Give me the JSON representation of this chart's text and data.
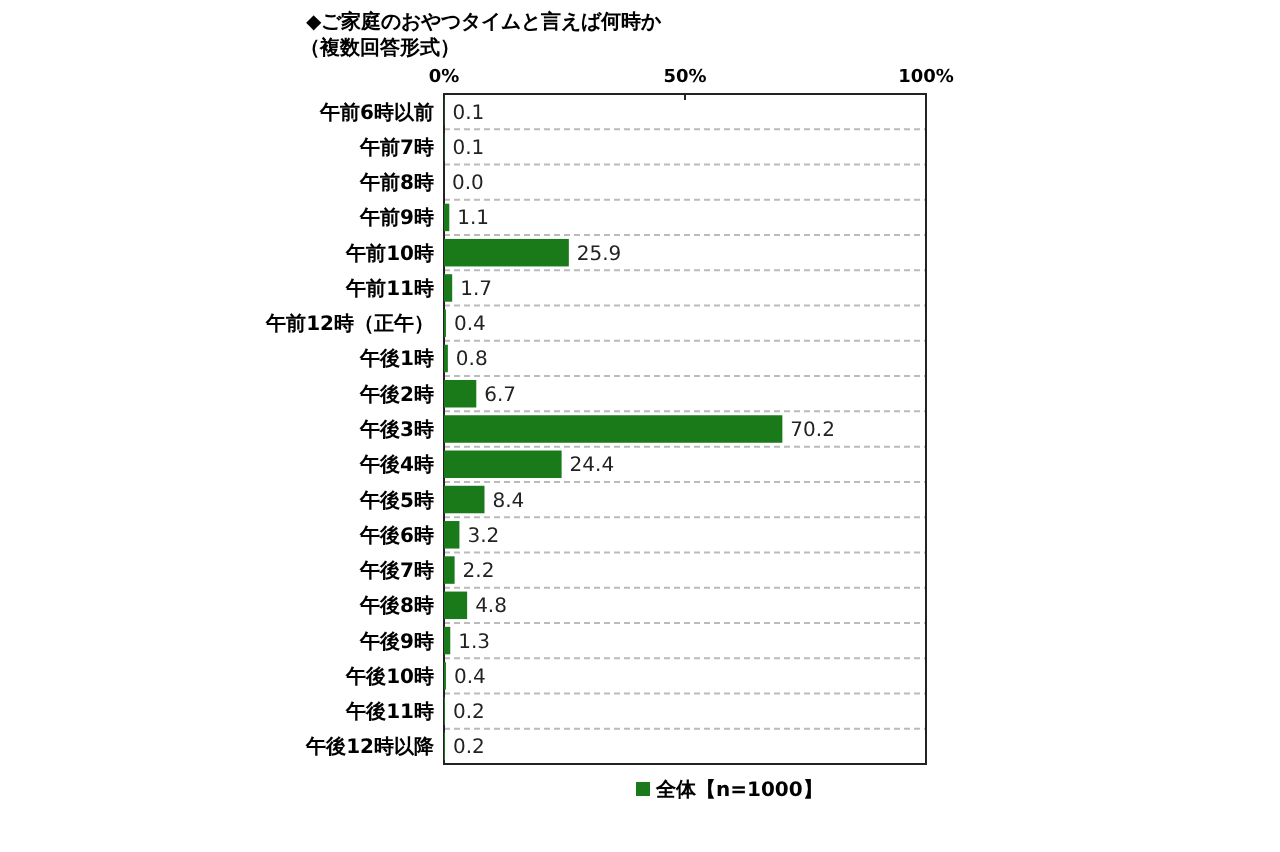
{
  "chart_data": {
    "type": "bar",
    "orientation": "horizontal",
    "title": "◆ご家庭のおやつタイムと言えば何時か",
    "subtitle": "（複数回答形式）",
    "categories": [
      "午前6時以前",
      "午前7時",
      "午前8時",
      "午前9時",
      "午前10時",
      "午前11時",
      "午前12時（正午）",
      "午後1時",
      "午後2時",
      "午後3時",
      "午後4時",
      "午後5時",
      "午後6時",
      "午後7時",
      "午後8時",
      "午後9時",
      "午後10時",
      "午後11時",
      "午後12時以降"
    ],
    "series": [
      {
        "name": "全体【n=1000】",
        "color": "#1a7a1a",
        "values": [
          0.1,
          0.1,
          0.0,
          1.1,
          25.9,
          1.7,
          0.4,
          0.8,
          6.7,
          70.2,
          24.4,
          8.4,
          3.2,
          2.2,
          4.8,
          1.3,
          0.4,
          0.2,
          0.2
        ],
        "value_labels": [
          "0.1",
          "0.1",
          "0.0",
          "1.1",
          "25.9",
          "1.7",
          "0.4",
          "0.8",
          "6.7",
          "70.2",
          "24.4",
          "8.4",
          "3.2",
          "2.2",
          "4.8",
          "1.3",
          "0.4",
          "0.2",
          "0.2"
        ]
      }
    ],
    "xlim": [
      0,
      100
    ],
    "xticks": [
      {
        "value": 0,
        "label": "0%"
      },
      {
        "value": 50,
        "label": "50%"
      },
      {
        "value": 100,
        "label": "100%"
      }
    ],
    "grid": "y",
    "legend": "bottom"
  }
}
